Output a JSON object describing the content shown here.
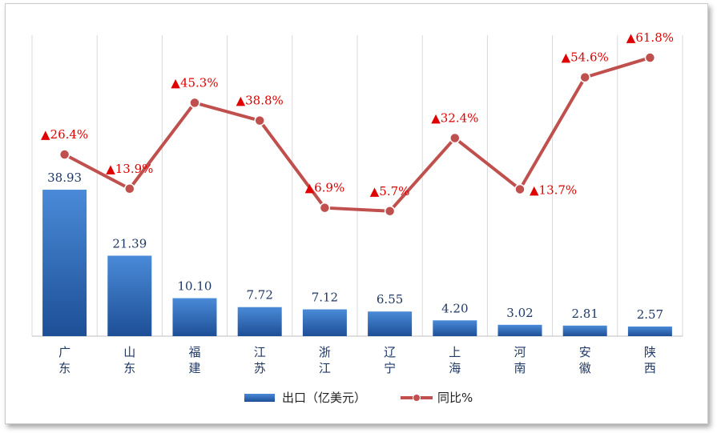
{
  "chart_data": {
    "type": "bar",
    "categories": [
      "广东",
      "山东",
      "福建",
      "江苏",
      "浙江",
      "辽宁",
      "上海",
      "河南",
      "安徽",
      "陕西"
    ],
    "series": [
      {
        "name": "出口（亿美元）",
        "type": "bar",
        "values": [
          38.93,
          21.39,
          10.1,
          7.72,
          7.12,
          6.55,
          4.2,
          3.02,
          2.81,
          2.57
        ],
        "labels": [
          "38.93",
          "21.39",
          "10.10",
          "7.72",
          "7.12",
          "6.55",
          "4.20",
          "3.02",
          "2.81",
          "2.57"
        ]
      },
      {
        "name": "同比%",
        "type": "line",
        "values": [
          26.4,
          13.9,
          45.3,
          38.8,
          6.9,
          5.7,
          32.4,
          13.7,
          54.6,
          61.8
        ],
        "labels": [
          "▲26.4%",
          "▲13.9%",
          "▲45.3%",
          "▲38.8%",
          "▲6.9%",
          "▲5.7%",
          "▲32.4%",
          "▲13.7%",
          "▲54.6%",
          "▲61.8%"
        ]
      }
    ],
    "bar_ylim": [
      0,
      80
    ],
    "line_ylim": [
      -40,
      70
    ],
    "grid": "vertical",
    "legend": "bottom",
    "colors": {
      "bar": "#2e6fc4",
      "line": "#c0504d",
      "value_label": "#1f3864",
      "pct_label": "#e00000"
    }
  }
}
